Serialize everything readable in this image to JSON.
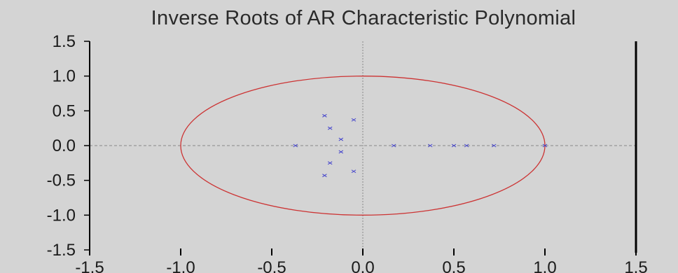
{
  "chart_data": {
    "type": "scatter",
    "title": "Inverse Roots of AR Characteristic Polynomial",
    "xlabel": "",
    "ylabel": "",
    "xlim": [
      -1.5,
      1.5
    ],
    "ylim": [
      -1.5,
      1.5
    ],
    "x_ticks": [
      -1.5,
      -1.0,
      -0.5,
      0.0,
      0.5,
      1.0,
      1.5
    ],
    "y_ticks": [
      -1.5,
      -1.0,
      -0.5,
      0.0,
      0.5,
      1.0,
      1.5
    ],
    "x_tick_labels": [
      "-1.5",
      "-1.0",
      "-0.5",
      "0.0",
      "0.5",
      "1.0",
      "1.5"
    ],
    "y_tick_labels": [
      "-1.5",
      "-1.0",
      "-0.5",
      "0.0",
      "0.5",
      "1.0",
      "1.5"
    ],
    "unit_circle": {
      "center": [
        0,
        0
      ],
      "radius": 1.0
    },
    "points": [
      {
        "x": -0.37,
        "y": 0.0
      },
      {
        "x": -0.21,
        "y": 0.43
      },
      {
        "x": -0.21,
        "y": -0.43
      },
      {
        "x": -0.18,
        "y": 0.25
      },
      {
        "x": -0.18,
        "y": -0.25
      },
      {
        "x": -0.12,
        "y": 0.09
      },
      {
        "x": -0.12,
        "y": -0.09
      },
      {
        "x": -0.05,
        "y": 0.37
      },
      {
        "x": -0.05,
        "y": -0.37
      },
      {
        "x": 0.17,
        "y": 0.0
      },
      {
        "x": 0.37,
        "y": 0.0
      },
      {
        "x": 0.5,
        "y": 0.0
      },
      {
        "x": 0.57,
        "y": 0.0
      },
      {
        "x": 0.72,
        "y": 0.0
      },
      {
        "x": 1.0,
        "y": 0.0
      }
    ],
    "grid": false,
    "zero_lines": true,
    "colors": {
      "circle": "#cc3333",
      "points": "#4444cc",
      "zero_line": "#888888",
      "axis": "#000000",
      "background": "#d4d4d4"
    }
  }
}
